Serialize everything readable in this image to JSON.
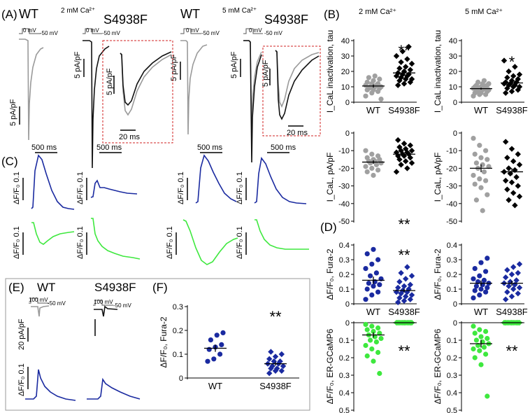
{
  "panels": {
    "A": "(A)",
    "B": "(B)",
    "C": "(C)",
    "D": "(D)",
    "E": "(E)",
    "F": "(F)"
  },
  "conditions": {
    "ca2": "2 mM Ca²⁺",
    "ca5": "5 mM Ca²⁺"
  },
  "genotypes": {
    "wt": "WT",
    "mut": "S4938F"
  },
  "protocol": {
    "step0": "0 mV",
    "stepNeg50": "-50 mV",
    "step100": "100 mV"
  },
  "scalebars": {
    "pApF5": "5 pA/pF",
    "pApF20": "20 pA/pF",
    "ms20": "20 ms",
    "ms500": "500 ms",
    "dff": "ΔF/F₀ 0.1"
  },
  "axes": {
    "tau": "I_CaL inactivation, tau",
    "ica": "I_CaL, pA/pF",
    "fura": "ΔF/F₀, Fura-2",
    "ergc": "ΔF/F₀, ER-GCaMP6"
  },
  "significance": {
    "double": "**",
    "single": "*"
  },
  "colors": {
    "wt_trace": "#9a9a9a",
    "mut_trace": "#111111",
    "fura": "#1a2aa0",
    "gcamp": "#3ee83e",
    "inset_box": "#d22222"
  },
  "chart_data": [
    {
      "id": "B_tau_2mM",
      "type": "scatter",
      "title": "2 mM Ca²⁺",
      "ylabel": "I_CaL inactivation, tau",
      "ylim": [
        0,
        40
      ],
      "yticks": [
        0,
        10,
        20,
        30,
        40
      ],
      "categories": [
        "WT",
        "S4938F"
      ],
      "significance": "**",
      "series": [
        {
          "name": "WT",
          "values": [
            4,
            6,
            7,
            8,
            8,
            9,
            9,
            10,
            10,
            10,
            11,
            11,
            12,
            12,
            13,
            14,
            15,
            16,
            17,
            2
          ],
          "mean": 10.5,
          "sem": 1.0
        },
        {
          "name": "S4938F",
          "values": [
            11,
            12,
            13,
            14,
            15,
            15,
            16,
            17,
            17,
            18,
            18,
            19,
            20,
            21,
            22,
            23,
            25,
            26,
            28,
            30,
            33,
            36
          ],
          "mean": 19.0,
          "sem": 1.3
        }
      ]
    },
    {
      "id": "B_tau_5mM",
      "type": "scatter",
      "title": "5 mM Ca²⁺",
      "ylabel": "I_CaL inactivation, tau",
      "ylim": [
        0,
        40
      ],
      "yticks": [
        0,
        10,
        20,
        30,
        40
      ],
      "categories": [
        "WT",
        "S4938F"
      ],
      "significance": "*",
      "series": [
        {
          "name": "WT",
          "values": [
            4,
            5,
            5,
            6,
            6,
            7,
            7,
            8,
            8,
            8,
            9,
            9,
            9,
            10,
            10,
            10,
            11,
            11,
            12,
            12,
            13,
            14
          ],
          "mean": 8.8,
          "sem": 0.6
        },
        {
          "name": "S4938F",
          "values": [
            6,
            7,
            8,
            9,
            10,
            10,
            11,
            11,
            12,
            12,
            13,
            13,
            14,
            15,
            16,
            17,
            18,
            20,
            23,
            27
          ],
          "mean": 12.5,
          "sem": 1.2
        }
      ]
    },
    {
      "id": "B_ica_2mM",
      "type": "scatter",
      "ylabel": "I_CaL, pA/pF",
      "ylim": [
        -50,
        0
      ],
      "yticks": [
        0,
        -10,
        -20,
        -30,
        -40,
        -50
      ],
      "categories": [
        "WT",
        "S4938F"
      ],
      "significance": "**",
      "series": [
        {
          "name": "WT",
          "values": [
            -10,
            -12,
            -13,
            -14,
            -15,
            -15,
            -16,
            -16,
            -17,
            -17,
            -18,
            -19,
            -20,
            -21,
            -22,
            -24
          ],
          "mean": -16.5,
          "sem": 1.0
        },
        {
          "name": "S4938F",
          "values": [
            -4,
            -6,
            -7,
            -8,
            -9,
            -10,
            -10,
            -11,
            -11,
            -12,
            -12,
            -13,
            -13,
            -14,
            -15,
            -16,
            -17,
            -18,
            -20,
            -22
          ],
          "mean": -12.0,
          "sem": 1.0
        }
      ]
    },
    {
      "id": "B_ica_5mM",
      "type": "scatter",
      "ylabel": "I_CaL, pA/pF",
      "ylim": [
        -50,
        0
      ],
      "yticks": [
        0,
        -10,
        -20,
        -30,
        -40,
        -50
      ],
      "categories": [
        "WT",
        "S4938F"
      ],
      "series": [
        {
          "name": "WT",
          "values": [
            -3,
            -7,
            -10,
            -12,
            -14,
            -15,
            -17,
            -18,
            -19,
            -20,
            -22,
            -24,
            -26,
            -27,
            -29,
            -31,
            -35,
            -38,
            -44
          ],
          "mean": -20.0,
          "sem": 2.2
        },
        {
          "name": "S4938F",
          "values": [
            -5,
            -9,
            -12,
            -14,
            -16,
            -18,
            -20,
            -21,
            -22,
            -23,
            -25,
            -27,
            -28,
            -30,
            -32,
            -34,
            -36,
            -38,
            -41
          ],
          "mean": -22.0,
          "sem": 2.0
        }
      ]
    },
    {
      "id": "D_fura_2mM",
      "type": "scatter",
      "ylabel": "ΔF/F₀, Fura-2",
      "ylim": [
        0.0,
        0.4
      ],
      "yticks": [
        0.0,
        0.1,
        0.2,
        0.3,
        0.4
      ],
      "categories": [
        "WT",
        "S4938F"
      ],
      "significance": "**",
      "series": [
        {
          "name": "WT",
          "values": [
            0.03,
            0.06,
            0.08,
            0.1,
            0.12,
            0.13,
            0.14,
            0.15,
            0.17,
            0.19,
            0.21,
            0.24,
            0.27,
            0.3,
            0.34,
            0.37
          ],
          "mean": 0.16,
          "sem": 0.025
        },
        {
          "name": "S4938F",
          "values": [
            0.01,
            0.02,
            0.03,
            0.04,
            0.05,
            0.06,
            0.07,
            0.08,
            0.08,
            0.09,
            0.1,
            0.11,
            0.12,
            0.13,
            0.15,
            0.17,
            0.19,
            0.21,
            0.25
          ],
          "mean": 0.09,
          "sem": 0.013
        }
      ]
    },
    {
      "id": "D_fura_5mM",
      "type": "scatter",
      "ylabel": "ΔF/F₀, Fura-2",
      "ylim": [
        0.0,
        0.4
      ],
      "yticks": [
        0.0,
        0.1,
        0.2,
        0.3,
        0.4
      ],
      "categories": [
        "WT",
        "S4938F"
      ],
      "series": [
        {
          "name": "WT",
          "values": [
            0.04,
            0.06,
            0.08,
            0.09,
            0.1,
            0.11,
            0.12,
            0.13,
            0.14,
            0.15,
            0.16,
            0.17,
            0.19,
            0.22,
            0.24,
            0.28,
            0.31
          ],
          "mean": 0.14,
          "sem": 0.018
        },
        {
          "name": "S4938F",
          "values": [
            0.03,
            0.05,
            0.07,
            0.08,
            0.1,
            0.11,
            0.12,
            0.13,
            0.14,
            0.15,
            0.16,
            0.18,
            0.2,
            0.21,
            0.23,
            0.25,
            0.27
          ],
          "mean": 0.14,
          "sem": 0.017
        }
      ]
    },
    {
      "id": "D_ergc_2mM",
      "type": "scatter",
      "ylabel": "ΔF/F₀, ER-GCaMP6",
      "ylim": [
        0.5,
        0.0
      ],
      "yticks": [
        0.0,
        0.1,
        0.2,
        0.3,
        0.4,
        0.5
      ],
      "categories": [
        "WT",
        "S4938F"
      ],
      "significance": "**",
      "series": [
        {
          "name": "WT",
          "values": [
            0.01,
            0.02,
            0.03,
            0.04,
            0.05,
            0.06,
            0.07,
            0.08,
            0.09,
            0.1,
            0.11,
            0.13,
            0.15,
            0.17,
            0.19,
            0.22,
            0.29
          ],
          "mean": 0.07,
          "sem": 0.015
        },
        {
          "name": "S4938F",
          "values": [
            0.0,
            0.0,
            0.0,
            0.0,
            0.0,
            0.0,
            0.0,
            0.0,
            0.0,
            0.0,
            0.0,
            0.0,
            0.0,
            0.0
          ],
          "mean": 0.0,
          "sem": 0.0
        }
      ]
    },
    {
      "id": "D_ergc_5mM",
      "type": "scatter",
      "ylabel": "ΔF/F₀, ER-GCaMP6",
      "ylim": [
        0.5,
        0.0
      ],
      "yticks": [
        0.0,
        0.1,
        0.2,
        0.3,
        0.4,
        0.5
      ],
      "categories": [
        "WT",
        "S4938F"
      ],
      "significance": "**",
      "series": [
        {
          "name": "WT",
          "values": [
            0.02,
            0.04,
            0.05,
            0.06,
            0.08,
            0.09,
            0.1,
            0.11,
            0.12,
            0.13,
            0.14,
            0.15,
            0.16,
            0.18,
            0.2,
            0.24,
            0.42
          ],
          "mean": 0.12,
          "sem": 0.022
        },
        {
          "name": "S4938F",
          "values": [
            0.0,
            0.0,
            0.0,
            0.0,
            0.0,
            0.0,
            0.0,
            0.0,
            0.0,
            0.0,
            0.0,
            0.0,
            0.0,
            0.0
          ],
          "mean": 0.0,
          "sem": 0.0
        }
      ]
    },
    {
      "id": "F_fura_caffeine",
      "type": "scatter",
      "ylabel": "ΔF/F₀, Fura-2",
      "ylim": [
        0.0,
        0.3
      ],
      "yticks": [
        0.0,
        0.1,
        0.2,
        0.3
      ],
      "categories": [
        "WT",
        "S4938F"
      ],
      "significance": "**",
      "series": [
        {
          "name": "WT",
          "values": [
            0.07,
            0.08,
            0.1,
            0.12,
            0.13,
            0.14,
            0.16,
            0.18,
            0.19
          ],
          "mean": 0.125,
          "sem": 0.015
        },
        {
          "name": "S4938F",
          "values": [
            0.02,
            0.03,
            0.03,
            0.04,
            0.04,
            0.05,
            0.05,
            0.06,
            0.06,
            0.07,
            0.07,
            0.08,
            0.09,
            0.1,
            0.11
          ],
          "mean": 0.06,
          "sem": 0.008
        }
      ]
    }
  ]
}
